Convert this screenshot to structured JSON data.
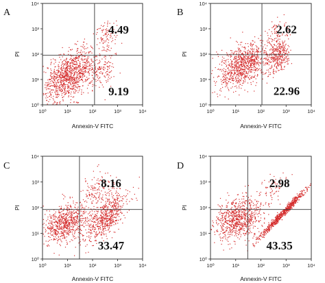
{
  "chart_data": [
    {
      "type": "scatter",
      "panel": "A",
      "xlabel": "Annexin-V FITC",
      "ylabel": "PI",
      "x_scale": "log",
      "y_scale": "log",
      "xlim": [
        1,
        10000
      ],
      "ylim": [
        1,
        10000
      ],
      "x_ticks": [
        "10⁰",
        "10¹",
        "10²",
        "10³",
        "10⁴"
      ],
      "y_ticks": [
        "10⁰",
        "10¹",
        "10²",
        "10³",
        "10⁴"
      ],
      "gate_x": 120,
      "gate_y": 90,
      "quadrant_labels": [
        {
          "quadrant": "upper-right",
          "text": "4.49"
        },
        {
          "quadrant": "lower-right",
          "text": "9.19"
        }
      ],
      "point_color": "#d42a2a",
      "populations": [
        {
          "center_x": 12,
          "center_y": 15,
          "spread_x": 0.55,
          "spread_y": 0.45,
          "tilt": 0.45,
          "count": 1100
        },
        {
          "center_x": 350,
          "center_y": 600,
          "spread_x": 0.25,
          "spread_y": 0.3,
          "tilt": 0.2,
          "count": 90
        },
        {
          "center_x": 250,
          "center_y": 30,
          "spread_x": 0.3,
          "spread_y": 0.4,
          "tilt": 0.3,
          "count": 120
        }
      ]
    },
    {
      "type": "scatter",
      "panel": "B",
      "xlabel": "Annexin-V FITC",
      "ylabel": "PI",
      "x_scale": "log",
      "y_scale": "log",
      "xlim": [
        1,
        10000
      ],
      "ylim": [
        1,
        10000
      ],
      "x_ticks": [
        "10⁰",
        "10¹",
        "10²",
        "10³",
        "10⁴"
      ],
      "y_ticks": [
        "10⁰",
        "10¹",
        "10²",
        "10³",
        "10⁴"
      ],
      "gate_x": 110,
      "gate_y": 95,
      "quadrant_labels": [
        {
          "quadrant": "upper-right",
          "text": "2.62"
        },
        {
          "quadrant": "lower-right",
          "text": "22.96"
        }
      ],
      "point_color": "#d42a2a",
      "populations": [
        {
          "center_x": 20,
          "center_y": 40,
          "spread_x": 0.5,
          "spread_y": 0.4,
          "tilt": 0.4,
          "count": 900
        },
        {
          "center_x": 450,
          "center_y": 80,
          "spread_x": 0.22,
          "spread_y": 0.35,
          "tilt": 0.6,
          "count": 320
        },
        {
          "center_x": 500,
          "center_y": 900,
          "spread_x": 0.2,
          "spread_y": 0.25,
          "tilt": 0.3,
          "count": 60
        }
      ]
    },
    {
      "type": "scatter",
      "panel": "C",
      "xlabel": "Annexin-V FITC",
      "ylabel": "PI",
      "x_scale": "log",
      "y_scale": "log",
      "xlim": [
        1,
        10000
      ],
      "ylim": [
        1,
        10000
      ],
      "x_ticks": [
        "10⁰",
        "10¹",
        "10²",
        "10³",
        "10⁴"
      ],
      "y_ticks": [
        "10⁰",
        "10¹",
        "10²",
        "10³",
        "10⁴"
      ],
      "gate_x": 30,
      "gate_y": 85,
      "quadrant_labels": [
        {
          "quadrant": "upper-right",
          "text": "8.16"
        },
        {
          "quadrant": "lower-right",
          "text": "33.47"
        }
      ],
      "point_color": "#d42a2a",
      "populations": [
        {
          "center_x": 8,
          "center_y": 25,
          "spread_x": 0.45,
          "spread_y": 0.35,
          "tilt": 0.3,
          "count": 700
        },
        {
          "center_x": 300,
          "center_y": 40,
          "spread_x": 0.45,
          "spread_y": 0.35,
          "tilt": 0.75,
          "count": 600
        },
        {
          "center_x": 150,
          "center_y": 400,
          "spread_x": 0.4,
          "spread_y": 0.35,
          "tilt": 0.3,
          "count": 160
        }
      ]
    },
    {
      "type": "scatter",
      "panel": "D",
      "xlabel": "Annexin-V FITC",
      "ylabel": "PI",
      "x_scale": "log",
      "y_scale": "log",
      "xlim": [
        1,
        10000
      ],
      "ylim": [
        1,
        10000
      ],
      "x_ticks": [
        "10⁰",
        "10¹",
        "10²",
        "10³",
        "10⁴"
      ],
      "y_ticks": [
        "10⁰",
        "10¹",
        "10²",
        "10³",
        "10⁴"
      ],
      "gate_x": 30,
      "gate_y": 85,
      "quadrant_labels": [
        {
          "quadrant": "upper-right",
          "text": "2.98"
        },
        {
          "quadrant": "lower-right",
          "text": "43.35"
        }
      ],
      "point_color": "#d42a2a",
      "populations": [
        {
          "center_x": 12,
          "center_y": 40,
          "spread_x": 0.45,
          "spread_y": 0.4,
          "tilt": 0.3,
          "count": 800
        },
        {
          "center_x": 700,
          "center_y": 60,
          "spread_x": 0.45,
          "spread_y": 0.08,
          "tilt": 1.0,
          "count": 650
        },
        {
          "center_x": 300,
          "center_y": 600,
          "spread_x": 0.3,
          "spread_y": 0.3,
          "tilt": 0.3,
          "count": 60
        }
      ]
    }
  ]
}
